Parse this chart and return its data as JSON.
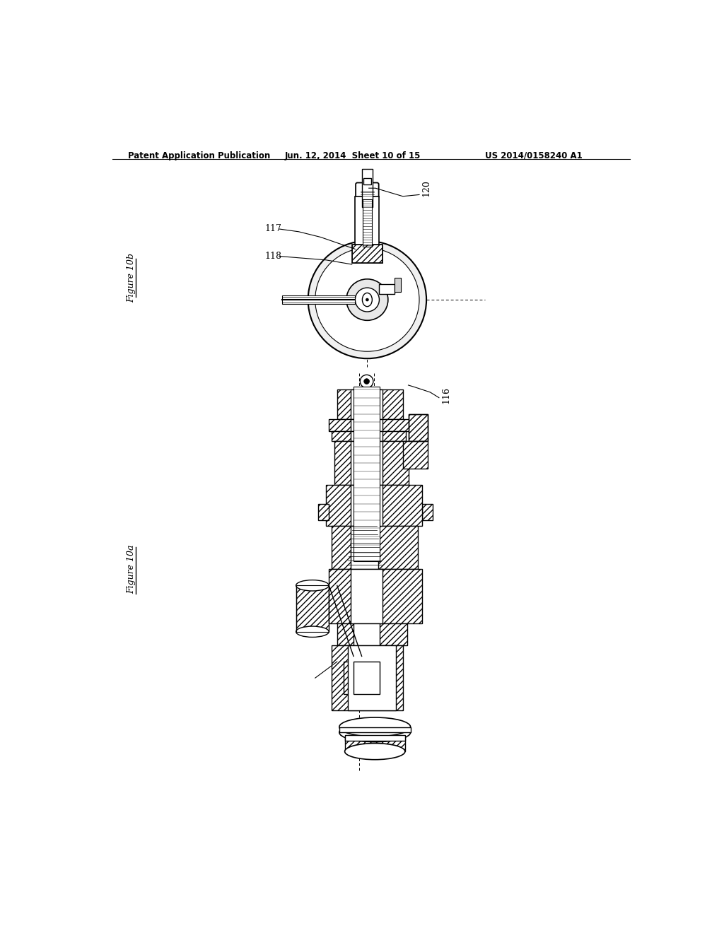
{
  "bg_color": "#ffffff",
  "header_left": "Patent Application Publication",
  "header_center": "Jun. 12, 2014  Sheet 10 of 15",
  "header_right": "US 2014/0158240 A1",
  "fig_label_10b": "Figure 10b",
  "fig_label_10a": "Figure 10a",
  "label_117": "117",
  "label_118": "118",
  "label_120": "120",
  "label_116": "116",
  "line_color": "#000000",
  "hatch_color": "#000000"
}
